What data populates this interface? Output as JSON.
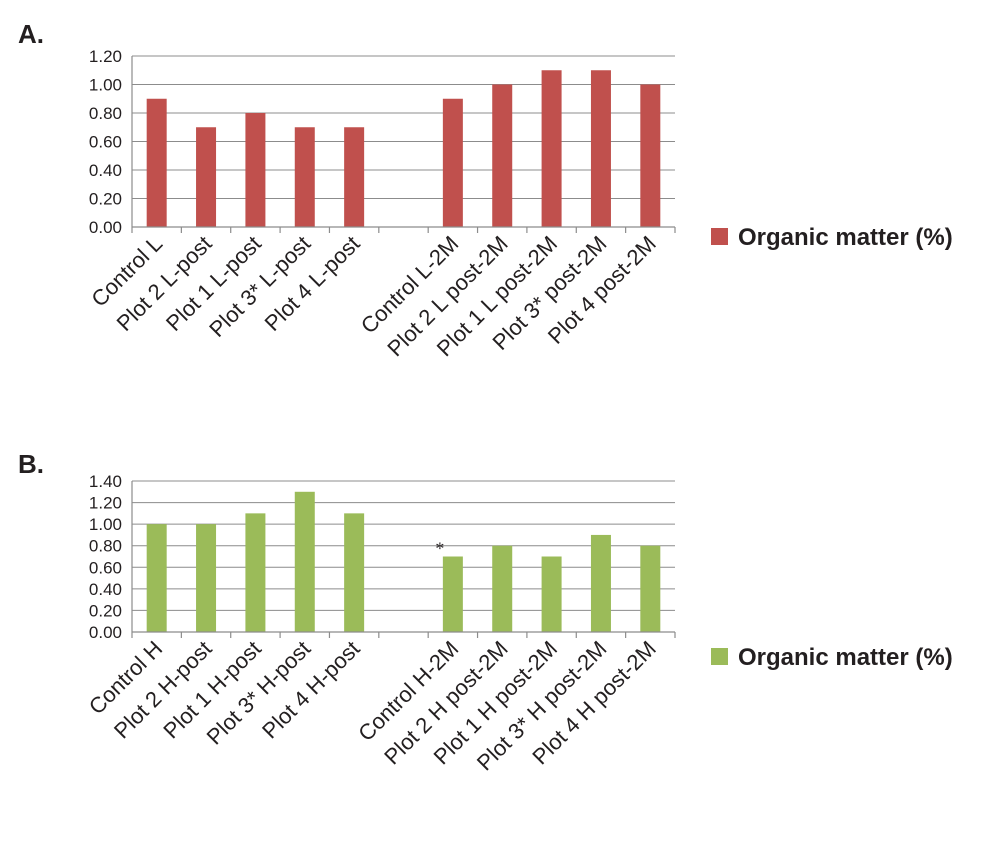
{
  "chart_data": [
    {
      "panel_label": "A.",
      "type": "bar",
      "categories": [
        "Control L",
        "Plot 2 L-post",
        "Plot 1 L-post",
        "Plot 3* L-post",
        "Plot 4 L-post",
        "",
        "Control L-2M",
        "Plot 2 L post-2M",
        "Plot 1 L post-2M",
        "Plot 3* post-2M",
        "Plot 4 post-2M"
      ],
      "series": [
        {
          "name": "Organic matter (%)",
          "color": "#c0504d",
          "values": [
            0.9,
            0.7,
            0.8,
            0.7,
            0.7,
            null,
            0.9,
            1.0,
            1.1,
            1.1,
            1.0
          ]
        }
      ],
      "ylim": [
        0,
        1.2
      ],
      "yticks": [
        "0.00",
        "0.20",
        "0.40",
        "0.60",
        "0.80",
        "1.00",
        "1.20"
      ],
      "grid": true,
      "legend_position": "right",
      "annotations": []
    },
    {
      "panel_label": "B.",
      "type": "bar",
      "categories": [
        "Control H",
        "Plot 2 H-post",
        "Plot 1 H-post",
        "Plot 3* H-post",
        "Plot 4 H-post",
        "",
        "Control H-2M",
        "Plot 2 H post-2M",
        "Plot 1 H post-2M",
        "Plot 3* H post-2M",
        "Plot 4 H post-2M"
      ],
      "series": [
        {
          "name": "Organic matter (%)",
          "color": "#9bbb59",
          "values": [
            1.0,
            1.0,
            1.1,
            1.3,
            1.1,
            null,
            0.7,
            0.8,
            0.7,
            0.9,
            0.8
          ]
        }
      ],
      "ylim": [
        0,
        1.4
      ],
      "yticks": [
        "0.00",
        "0.20",
        "0.40",
        "0.60",
        "0.80",
        "1.00",
        "1.20",
        "1.40"
      ],
      "grid": true,
      "legend_position": "right",
      "annotations": [
        {
          "text": "*",
          "category_index": 6
        }
      ]
    }
  ]
}
